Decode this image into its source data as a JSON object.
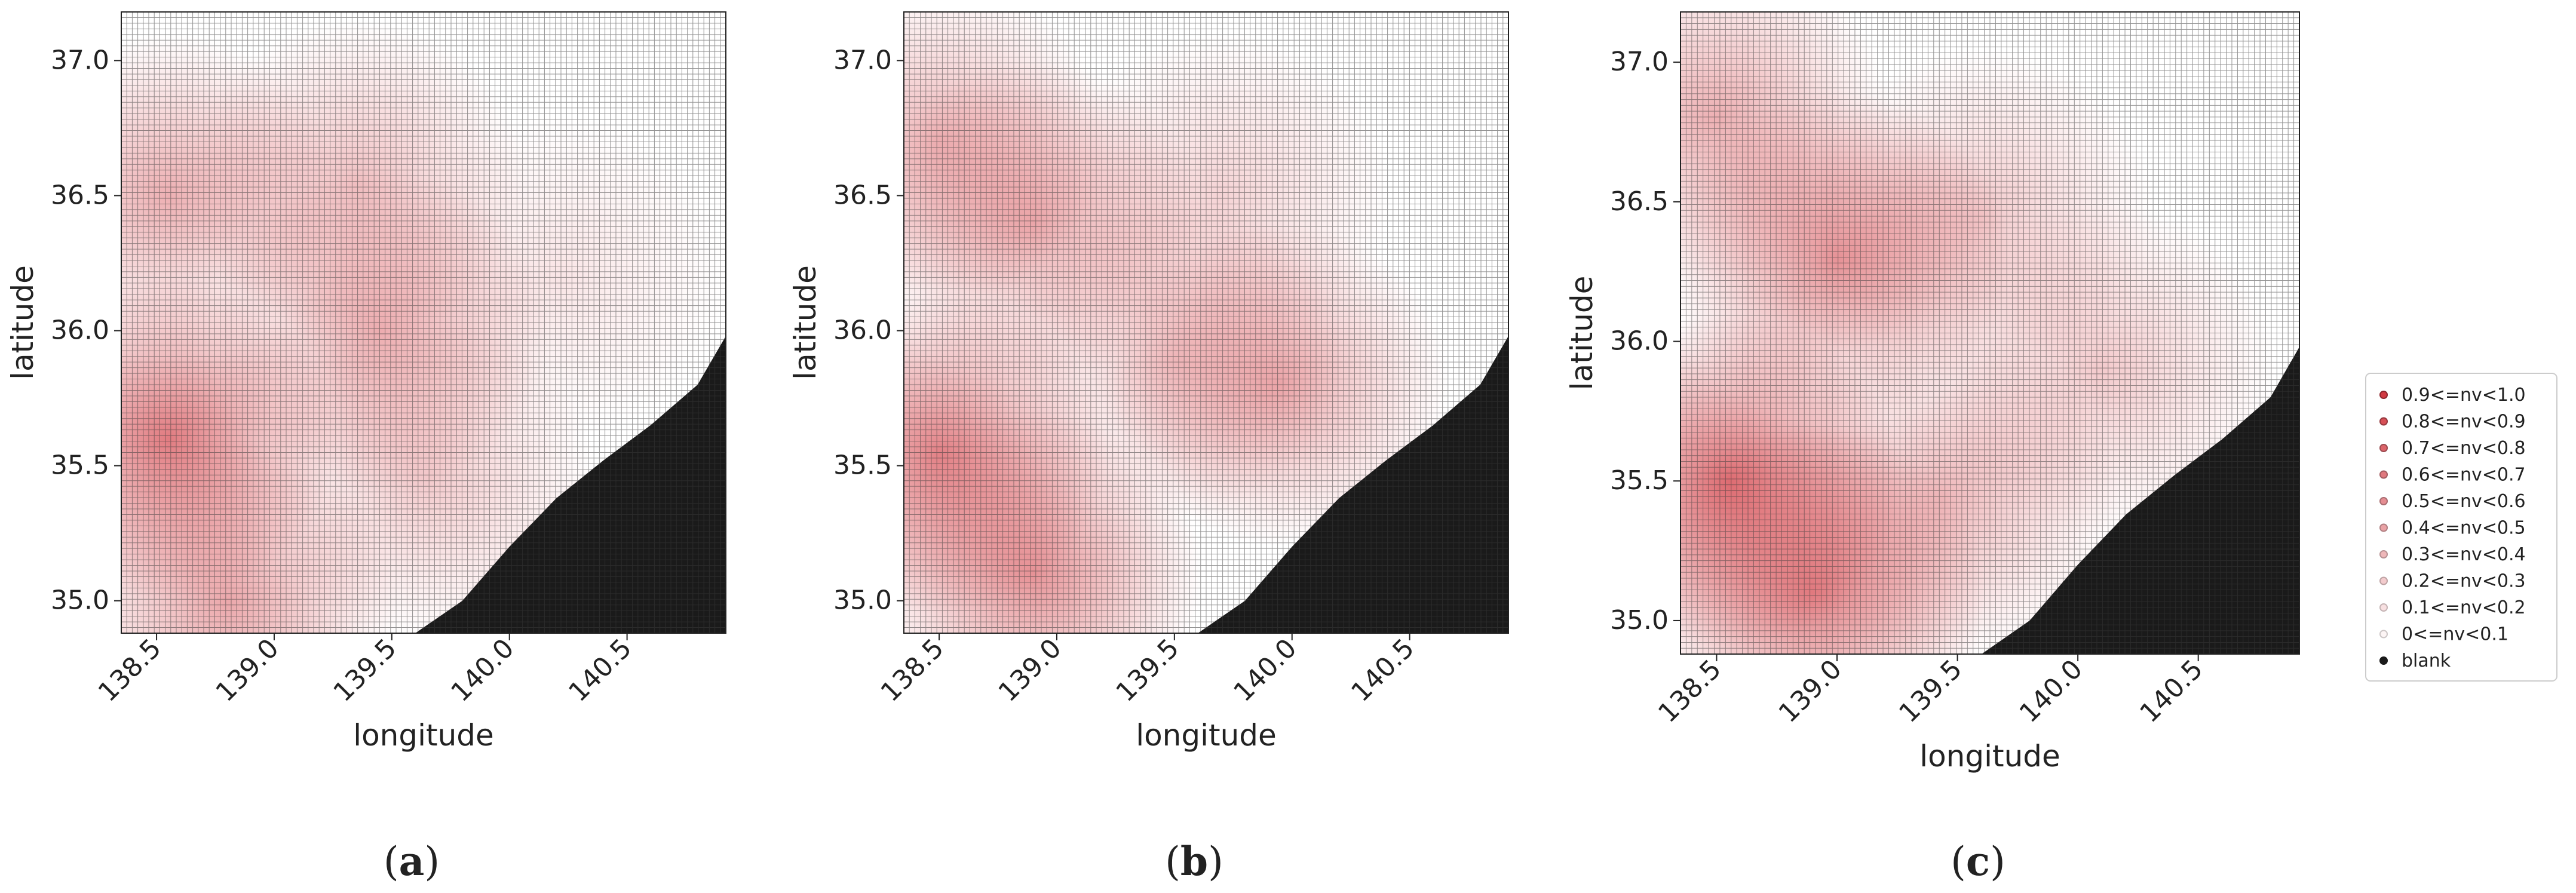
{
  "chart_data": [
    {
      "type": "heatmap",
      "panel_label": "a",
      "xlabel": "longitude",
      "ylabel": "latitude",
      "xlim": [
        138.35,
        140.92
      ],
      "ylim": [
        34.88,
        37.18
      ],
      "xticks": [
        "138.5",
        "139.0",
        "139.5",
        "140.0",
        "140.5"
      ],
      "yticks": [
        "35.0",
        "35.5",
        "36.0",
        "36.5",
        "37.0"
      ],
      "grid": true,
      "hotspots": [
        {
          "lon": 138.55,
          "lat": 35.6,
          "nv": 0.75
        },
        {
          "lon": 138.55,
          "lat": 36.5,
          "nv": 0.45
        },
        {
          "lon": 139.35,
          "lat": 36.55,
          "nv": 0.35
        },
        {
          "lon": 139.45,
          "lat": 36.0,
          "nv": 0.45
        },
        {
          "lon": 138.8,
          "lat": 35.0,
          "nv": 0.5
        },
        {
          "lon": 139.65,
          "lat": 35.45,
          "nv": 0.3
        },
        {
          "lon": 140.2,
          "lat": 36.2,
          "nv": 0.15
        }
      ]
    },
    {
      "type": "heatmap",
      "panel_label": "b",
      "xlabel": "longitude",
      "ylabel": "latitude",
      "xlim": [
        138.35,
        140.92
      ],
      "ylim": [
        34.88,
        37.18
      ],
      "xticks": [
        "138.5",
        "139.0",
        "139.5",
        "140.0",
        "140.5"
      ],
      "yticks": [
        "35.0",
        "35.5",
        "36.0",
        "36.5",
        "37.0"
      ],
      "grid": true,
      "hotspots": [
        {
          "lon": 138.5,
          "lat": 35.55,
          "nv": 0.7
        },
        {
          "lon": 138.9,
          "lat": 35.1,
          "nv": 0.6
        },
        {
          "lon": 138.9,
          "lat": 36.4,
          "nv": 0.45
        },
        {
          "lon": 139.95,
          "lat": 35.8,
          "nv": 0.45
        },
        {
          "lon": 138.5,
          "lat": 36.7,
          "nv": 0.4
        },
        {
          "lon": 139.5,
          "lat": 35.9,
          "nv": 0.3
        },
        {
          "lon": 139.7,
          "lat": 36.5,
          "nv": 0.25
        }
      ]
    },
    {
      "type": "heatmap",
      "panel_label": "c",
      "xlabel": "longitude",
      "ylabel": "latitude",
      "xlim": [
        138.35,
        140.92
      ],
      "ylim": [
        34.88,
        37.18
      ],
      "xticks": [
        "138.5",
        "139.0",
        "139.5",
        "140.0",
        "140.5"
      ],
      "yticks": [
        "35.0",
        "35.5",
        "36.0",
        "36.5",
        "37.0"
      ],
      "grid": true,
      "hotspots": [
        {
          "lon": 138.55,
          "lat": 35.5,
          "nv": 0.8
        },
        {
          "lon": 138.9,
          "lat": 35.1,
          "nv": 0.7
        },
        {
          "lon": 139.0,
          "lat": 36.3,
          "nv": 0.6
        },
        {
          "lon": 138.5,
          "lat": 36.8,
          "nv": 0.45
        },
        {
          "lon": 139.45,
          "lat": 35.45,
          "nv": 0.4
        },
        {
          "lon": 139.6,
          "lat": 36.45,
          "nv": 0.3
        },
        {
          "lon": 140.1,
          "lat": 35.9,
          "nv": 0.3
        }
      ]
    }
  ],
  "legend": {
    "placement": "right",
    "entries": [
      {
        "label": "0.9<=nv<1.0",
        "nv": 0.95
      },
      {
        "label": "0.8<=nv<0.9",
        "nv": 0.85
      },
      {
        "label": "0.7<=nv<0.8",
        "nv": 0.75
      },
      {
        "label": "0.6<=nv<0.7",
        "nv": 0.65
      },
      {
        "label": "0.5<=nv<0.6",
        "nv": 0.55
      },
      {
        "label": "0.4<=nv<0.5",
        "nv": 0.45
      },
      {
        "label": "0.3<=nv<0.4",
        "nv": 0.35
      },
      {
        "label": "0.2<=nv<0.3",
        "nv": 0.25
      },
      {
        "label": "0.1<=nv<0.2",
        "nv": 0.15
      },
      {
        "label": "0<=nv<0.1",
        "nv": 0.05
      },
      {
        "label": "blank",
        "nv": null
      }
    ]
  },
  "colors": {
    "high": "#d03038",
    "low": "#ffffff",
    "blank": "#1a1a1a",
    "grid": "#3a3a3a"
  }
}
